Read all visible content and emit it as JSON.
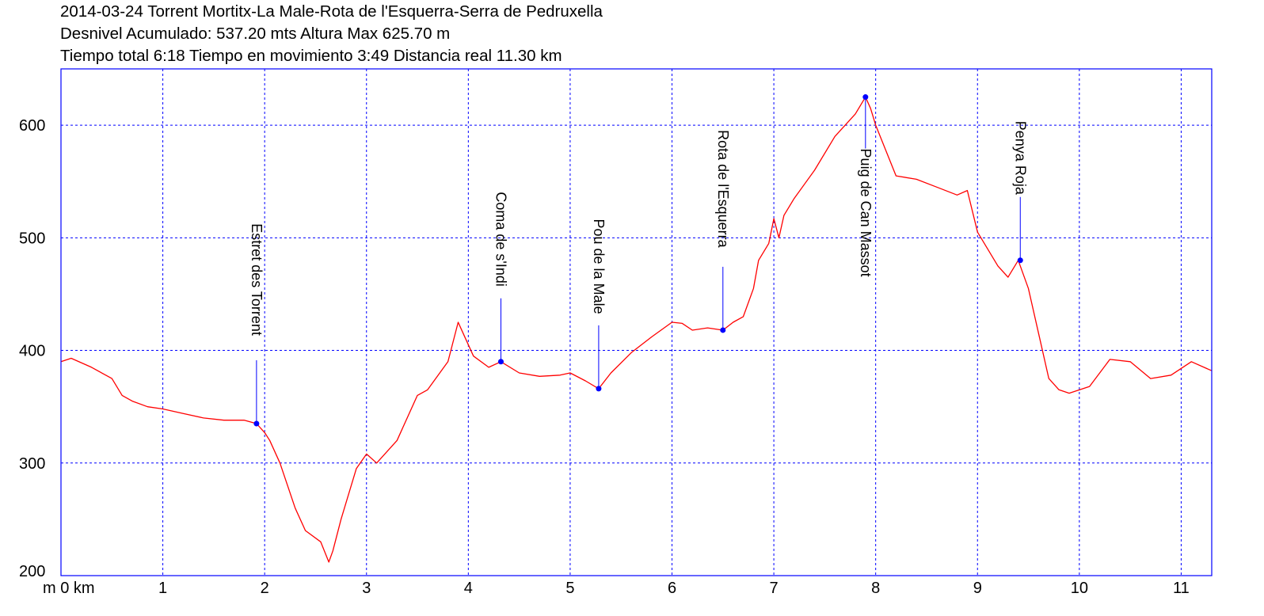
{
  "title_lines": [
    "2014-03-24 Torrent Mortitx-La Male-Rota de l'Esquerra-Serra de Pedruxella",
    "Desnivel Acumulado: 537.20 mts  Altura Max 625.70 m",
    "Tiempo total 6:18 Tiempo en movimiento 3:49 Distancia real 11.30 km"
  ],
  "chart_data": {
    "type": "line",
    "xlim": [
      0,
      11.3
    ],
    "ylim": [
      200,
      650
    ],
    "x_ticks": [
      1,
      2,
      3,
      4,
      5,
      6,
      7,
      8,
      9,
      10,
      11
    ],
    "x_tick_labels": [
      "1",
      "2",
      "3",
      "4",
      "5",
      "6",
      "7",
      "8",
      "9",
      "10",
      "11"
    ],
    "x_origin_label": "m 0 km",
    "y_ticks": [
      300,
      400,
      500,
      600
    ],
    "y_tick_labels": [
      "200",
      "300",
      "400",
      "500",
      "600"
    ],
    "grid": true,
    "colors": {
      "line": "#ff0000",
      "frame": "#0000ff",
      "grid": "#0000ff",
      "waypoint": "#0000ff"
    },
    "series": [
      {
        "x": [
          0,
          0.1,
          0.3,
          0.5,
          0.6,
          0.7,
          0.85,
          1.0,
          1.2,
          1.4,
          1.6,
          1.8,
          1.92,
          2.0,
          2.05,
          2.15,
          2.3,
          2.4,
          2.55,
          2.63,
          2.67,
          2.75,
          2.9,
          3.0,
          3.1,
          3.3,
          3.5,
          3.6,
          3.8,
          3.9,
          3.95,
          4.05,
          4.2,
          4.32,
          4.5,
          4.7,
          4.9,
          5.0,
          5.15,
          5.28,
          5.4,
          5.6,
          5.8,
          6.0,
          6.1,
          6.2,
          6.35,
          6.5,
          6.6,
          6.7,
          6.8,
          6.85,
          6.95,
          7.0,
          7.05,
          7.1,
          7.2,
          7.4,
          7.6,
          7.8,
          7.9,
          7.95,
          8.0,
          8.2,
          8.4,
          8.6,
          8.8,
          8.9,
          9.0,
          9.2,
          9.3,
          9.4,
          9.5,
          9.6,
          9.7,
          9.8,
          9.9,
          10.1,
          10.3,
          10.5,
          10.7,
          10.9,
          11.1,
          11.3
        ],
        "y": [
          390,
          393,
          385,
          375,
          360,
          355,
          350,
          348,
          344,
          340,
          338,
          338,
          335,
          327,
          320,
          300,
          260,
          240,
          230,
          212,
          222,
          250,
          295,
          308,
          300,
          320,
          360,
          365,
          390,
          425,
          415,
          395,
          385,
          390,
          380,
          377,
          378,
          380,
          373,
          366,
          380,
          398,
          412,
          425,
          424,
          418,
          420,
          418,
          425,
          430,
          455,
          480,
          495,
          517,
          500,
          520,
          535,
          560,
          590,
          610,
          625,
          615,
          600,
          555,
          552,
          545,
          538,
          542,
          505,
          475,
          465,
          480,
          455,
          415,
          375,
          365,
          362,
          368,
          392,
          390,
          375,
          378,
          390,
          382
        ]
      }
    ],
    "waypoints": [
      {
        "x": 1.92,
        "y": 335,
        "label": "Estret des Torrent"
      },
      {
        "x": 4.32,
        "y": 390,
        "label": "Coma de s'Indi"
      },
      {
        "x": 5.28,
        "y": 366,
        "label": "Pou de la Male"
      },
      {
        "x": 6.5,
        "y": 418,
        "label": "Rota de l'Esquerra"
      },
      {
        "x": 7.9,
        "y": 625,
        "label": "Puig de Can Massot"
      },
      {
        "x": 9.42,
        "y": 480,
        "label": "Penya Roja"
      }
    ]
  }
}
